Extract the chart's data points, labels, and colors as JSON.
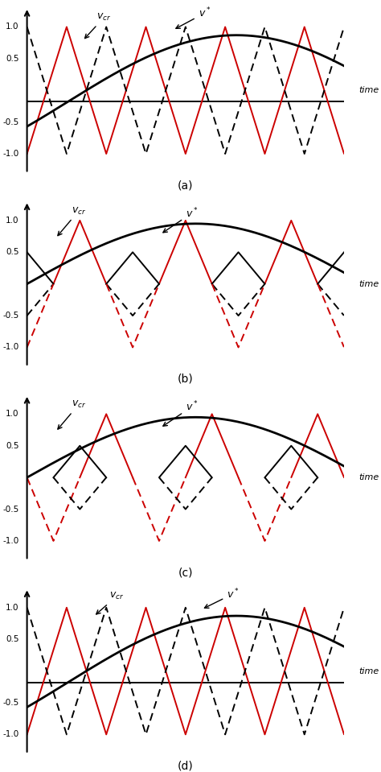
{
  "background_color": "#ffffff",
  "red_color": "#cc0000",
  "black_color": "#000000",
  "time_label": "time",
  "subplots": [
    "(a)",
    "(b)",
    "(c)",
    "(d)"
  ],
  "ylim": [
    -1.35,
    1.35
  ],
  "xlim": [
    0.0,
    1.0
  ],
  "N": 3000,
  "freq_a": 4,
  "freq_b": 3,
  "freq_c": 3,
  "freq_d": 4,
  "vstar_amp_a": 1.05,
  "vstar_freq_a": 0.47,
  "vstar_phase_a": -0.38,
  "vstar_dc_a": -0.18,
  "vstar_amp_b": 0.95,
  "vstar_freq_b": 0.47,
  "vstar_phase_b": 0.0,
  "vstar_dc_b": 0.0,
  "vstar_amp_c": 0.95,
  "vstar_freq_c": 0.47,
  "vstar_phase_c": 0.0,
  "vstar_dc_c": 0.0,
  "vstar_amp_d": 1.05,
  "vstar_freq_d": 0.47,
  "vstar_phase_d": -0.38,
  "vstar_dc_d": -0.18,
  "dc_line_a": -0.18,
  "dc_line_d": -0.18,
  "lw_carrier": 1.4,
  "lw_signal": 2.0,
  "lw_axis": 1.5
}
